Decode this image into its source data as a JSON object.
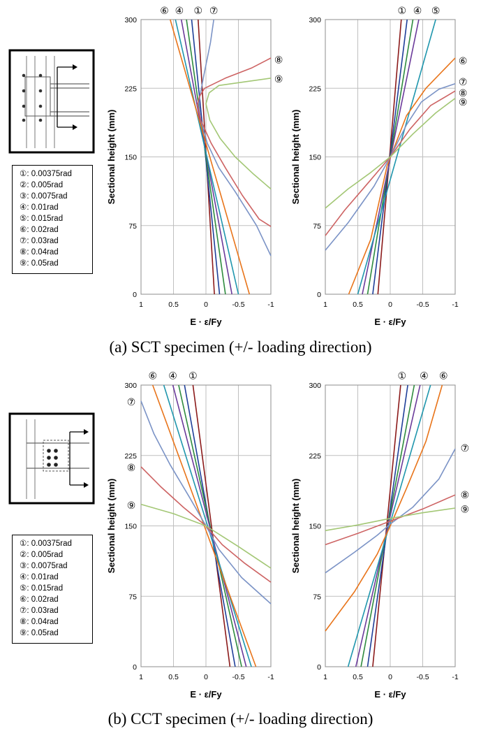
{
  "colors": {
    "r1": "#8b1a1a",
    "r2": "#1f3f99",
    "r3": "#2e8b3e",
    "r4": "#6a3a9a",
    "r5": "#1f96ad",
    "r6": "#e8741a",
    "r7": "#7b93c6",
    "r8": "#cd6363",
    "r9": "#a3c775"
  },
  "legend_items": [
    {
      "sym": "①",
      "text": ": 0.00375rad"
    },
    {
      "sym": "②",
      "text": ": 0.005rad"
    },
    {
      "sym": "③",
      "text": ": 0.0075rad"
    },
    {
      "sym": "④",
      "text": ": 0.01rad"
    },
    {
      "sym": "⑤",
      "text": ": 0.015rad"
    },
    {
      "sym": "⑥",
      "text": ": 0.02rad"
    },
    {
      "sym": "⑦",
      "text": ": 0.03rad"
    },
    {
      "sym": "⑧",
      "text": ": 0.04rad"
    },
    {
      "sym": "⑨",
      "text": ": 0.05rad"
    }
  ],
  "captions": {
    "a": "(a) SCT specimen (+/- loading direction)",
    "b": "(b) CCT specimen (+/- loading direction)"
  },
  "chart_data": [
    {
      "id": "a-left",
      "type": "line",
      "ylabel": "Sectional height (mm)",
      "xlabel": "E · ε/Fy",
      "xlim": [
        1,
        -1
      ],
      "ylim": [
        0,
        300
      ],
      "xticks": [
        1,
        0.5,
        0,
        -0.5,
        -1
      ],
      "yticks": [
        0,
        75,
        150,
        225,
        300
      ],
      "xtick_labels": [
        "1",
        "0.5",
        "0",
        "-0.5",
        "-1"
      ],
      "annotations": [
        {
          "sym": "⑥",
          "x": 0.64,
          "y": 310
        },
        {
          "sym": "④",
          "x": 0.41,
          "y": 310
        },
        {
          "sym": "①",
          "x": 0.12,
          "y": 310
        },
        {
          "sym": "⑦",
          "x": -0.12,
          "y": 310
        },
        {
          "sym": "⑧",
          "x": -1.12,
          "y": 256
        },
        {
          "sym": "⑨",
          "x": -1.12,
          "y": 235
        }
      ],
      "series": [
        {
          "key": "r1",
          "points": [
            [
              -0.13,
              0
            ],
            [
              0.12,
              300
            ]
          ]
        },
        {
          "key": "r2",
          "points": [
            [
              -0.21,
              0
            ],
            [
              0.22,
              300
            ]
          ]
        },
        {
          "key": "r3",
          "points": [
            [
              -0.3,
              0
            ],
            [
              0.3,
              300
            ]
          ]
        },
        {
          "key": "r4",
          "points": [
            [
              -0.4,
              0
            ],
            [
              0.38,
              300
            ]
          ]
        },
        {
          "key": "r5",
          "points": [
            [
              -0.5,
              0
            ],
            [
              0.47,
              300
            ]
          ]
        },
        {
          "key": "r6",
          "points": [
            [
              -0.67,
              0
            ],
            [
              0.55,
              300
            ]
          ]
        },
        {
          "key": "r7",
          "points": [
            [
              -1.0,
              42
            ],
            [
              -0.78,
              75
            ],
            [
              -0.45,
              112
            ],
            [
              -0.2,
              138
            ],
            [
              -0.02,
              165
            ],
            [
              0.08,
              190
            ],
            [
              0.11,
              210
            ],
            [
              0.03,
              240
            ],
            [
              -0.07,
              275
            ],
            [
              -0.12,
              300
            ]
          ]
        },
        {
          "key": "r8",
          "points": [
            [
              -1.0,
              74
            ],
            [
              -0.82,
              82
            ],
            [
              -0.56,
              108
            ],
            [
              -0.3,
              138
            ],
            [
              -0.08,
              165
            ],
            [
              0.08,
              190
            ],
            [
              0.13,
              207
            ],
            [
              0.1,
              216
            ],
            [
              0.02,
              225
            ],
            [
              -0.3,
              236
            ],
            [
              -0.7,
              247
            ],
            [
              -1.0,
              258
            ]
          ]
        },
        {
          "key": "r9",
          "points": [
            [
              -1.0,
              115
            ],
            [
              -0.72,
              132
            ],
            [
              -0.45,
              150
            ],
            [
              -0.22,
              170
            ],
            [
              -0.06,
              190
            ],
            [
              0.0,
              208
            ],
            [
              -0.05,
              220
            ],
            [
              -0.2,
              228
            ],
            [
              -0.6,
              232
            ],
            [
              -1.0,
              236
            ]
          ]
        }
      ]
    },
    {
      "id": "a-right",
      "type": "line",
      "ylabel": "Sectional height (mm)",
      "xlabel": "E · ε/Fy",
      "xlim": [
        1,
        -1
      ],
      "ylim": [
        0,
        300
      ],
      "xticks": [
        1,
        0.5,
        0,
        -0.5,
        -1
      ],
      "yticks": [
        0,
        75,
        150,
        225,
        300
      ],
      "xtick_labels": [
        "1",
        "0.5",
        "0",
        "-0.5",
        "-1"
      ],
      "annotations": [
        {
          "sym": "①",
          "x": -0.18,
          "y": 310
        },
        {
          "sym": "④",
          "x": -0.42,
          "y": 310
        },
        {
          "sym": "⑤",
          "x": -0.7,
          "y": 310
        },
        {
          "sym": "⑥",
          "x": -1.12,
          "y": 255
        },
        {
          "sym": "⑦",
          "x": -1.12,
          "y": 232
        },
        {
          "sym": "⑧",
          "x": -1.12,
          "y": 220
        },
        {
          "sym": "⑨",
          "x": -1.12,
          "y": 210
        }
      ],
      "series": [
        {
          "key": "r1",
          "points": [
            [
              0.19,
              0
            ],
            [
              -0.17,
              300
            ]
          ]
        },
        {
          "key": "r2",
          "points": [
            [
              0.27,
              0
            ],
            [
              -0.26,
              300
            ]
          ]
        },
        {
          "key": "r3",
          "points": [
            [
              0.35,
              0
            ],
            [
              -0.35,
              300
            ]
          ]
        },
        {
          "key": "r4",
          "points": [
            [
              0.43,
              0
            ],
            [
              -0.44,
              300
            ]
          ]
        },
        {
          "key": "r5",
          "points": [
            [
              0.5,
              0
            ],
            [
              -0.7,
              300
            ]
          ]
        },
        {
          "key": "r6",
          "points": [
            [
              0.64,
              0
            ],
            [
              0.3,
              60
            ],
            [
              0.05,
              140
            ],
            [
              -0.25,
              195
            ],
            [
              -0.55,
              225
            ],
            [
              -1.0,
              258
            ]
          ]
        },
        {
          "key": "r7",
          "points": [
            [
              1.0,
              48
            ],
            [
              0.65,
              78
            ],
            [
              0.25,
              118
            ],
            [
              0.0,
              150
            ],
            [
              -0.25,
              185
            ],
            [
              -0.48,
              210
            ],
            [
              -0.75,
              224
            ],
            [
              -1.0,
              230
            ]
          ]
        },
        {
          "key": "r8",
          "points": [
            [
              1.0,
              64
            ],
            [
              0.7,
              92
            ],
            [
              0.3,
              125
            ],
            [
              0.0,
              150
            ],
            [
              -0.3,
              180
            ],
            [
              -0.62,
              206
            ],
            [
              -1.0,
              222
            ]
          ]
        },
        {
          "key": "r9",
          "points": [
            [
              1.0,
              94
            ],
            [
              0.65,
              115
            ],
            [
              0.3,
              133
            ],
            [
              0.0,
              150
            ],
            [
              -0.35,
              175
            ],
            [
              -0.7,
              198
            ],
            [
              -1.0,
              214
            ]
          ]
        }
      ]
    },
    {
      "id": "b-left",
      "type": "line",
      "ylabel": "Sectional height (mm)",
      "xlabel": "E · ε/Fy",
      "xlim": [
        1,
        -1
      ],
      "ylim": [
        0,
        300
      ],
      "xticks": [
        1,
        0.5,
        0,
        -0.5,
        -1
      ],
      "yticks": [
        0,
        75,
        150,
        225,
        300
      ],
      "xtick_labels": [
        "1",
        "0.5",
        "0",
        "-0.5",
        "-1"
      ],
      "annotations": [
        {
          "sym": "⑥",
          "x": 0.82,
          "y": 310
        },
        {
          "sym": "④",
          "x": 0.51,
          "y": 310
        },
        {
          "sym": "①",
          "x": 0.2,
          "y": 310
        },
        {
          "sym": "⑦",
          "x": 1.15,
          "y": 282
        },
        {
          "sym": "⑧",
          "x": 1.15,
          "y": 212
        },
        {
          "sym": "⑨",
          "x": 1.15,
          "y": 172
        }
      ],
      "series": [
        {
          "key": "r1",
          "points": [
            [
              -0.37,
              0
            ],
            [
              0.2,
              300
            ]
          ]
        },
        {
          "key": "r2",
          "points": [
            [
              -0.45,
              0
            ],
            [
              0.33,
              300
            ]
          ]
        },
        {
          "key": "r3",
          "points": [
            [
              -0.55,
              0
            ],
            [
              0.42,
              300
            ]
          ]
        },
        {
          "key": "r4",
          "points": [
            [
              -0.62,
              0
            ],
            [
              0.51,
              300
            ]
          ]
        },
        {
          "key": "r5",
          "points": [
            [
              -0.7,
              0
            ],
            [
              0.65,
              300
            ]
          ]
        },
        {
          "key": "r6",
          "points": [
            [
              -0.77,
              0
            ],
            [
              0.82,
              300
            ]
          ]
        },
        {
          "key": "r7",
          "points": [
            [
              -1.0,
              67
            ],
            [
              -0.55,
              95
            ],
            [
              -0.2,
              125
            ],
            [
              0.0,
              150
            ],
            [
              0.25,
              180
            ],
            [
              0.55,
              215
            ],
            [
              0.8,
              248
            ],
            [
              1.0,
              283
            ]
          ]
        },
        {
          "key": "r8",
          "points": [
            [
              -1.0,
              90
            ],
            [
              -0.6,
              110
            ],
            [
              -0.25,
              130
            ],
            [
              0.0,
              150
            ],
            [
              0.35,
              170
            ],
            [
              0.7,
              192
            ],
            [
              1.0,
              213
            ]
          ]
        },
        {
          "key": "r9",
          "points": [
            [
              -1.0,
              105
            ],
            [
              -0.5,
              128
            ],
            [
              0.0,
              150
            ],
            [
              0.5,
              163
            ],
            [
              1.0,
              173
            ]
          ]
        }
      ]
    },
    {
      "id": "b-right",
      "type": "line",
      "ylabel": "Sectional height (mm)",
      "xlabel": "E · ε/Fy",
      "xlim": [
        1,
        -1
      ],
      "ylim": [
        0,
        300
      ],
      "xticks": [
        1,
        0.5,
        0,
        -0.5,
        -1
      ],
      "yticks": [
        0,
        75,
        150,
        225,
        300
      ],
      "xtick_labels": [
        "1",
        "0.5",
        "0",
        "-0.5",
        "-1"
      ],
      "annotations": [
        {
          "sym": "①",
          "x": -0.18,
          "y": 310
        },
        {
          "sym": "④",
          "x": -0.52,
          "y": 310
        },
        {
          "sym": "⑥",
          "x": -0.82,
          "y": 310
        },
        {
          "sym": "⑦",
          "x": -1.15,
          "y": 233
        },
        {
          "sym": "⑧",
          "x": -1.15,
          "y": 183
        },
        {
          "sym": "⑨",
          "x": -1.15,
          "y": 168
        }
      ],
      "series": [
        {
          "key": "r1",
          "points": [
            [
              0.27,
              0
            ],
            [
              -0.16,
              300
            ]
          ]
        },
        {
          "key": "r2",
          "points": [
            [
              0.35,
              0
            ],
            [
              -0.27,
              300
            ]
          ]
        },
        {
          "key": "r3",
          "points": [
            [
              0.45,
              0
            ],
            [
              -0.37,
              300
            ]
          ]
        },
        {
          "key": "r4",
          "points": [
            [
              0.53,
              0
            ],
            [
              -0.46,
              300
            ]
          ]
        },
        {
          "key": "r5",
          "points": [
            [
              0.65,
              0
            ],
            [
              -0.62,
              300
            ]
          ]
        },
        {
          "key": "r6",
          "points": [
            [
              1.0,
              38
            ],
            [
              0.55,
              80
            ],
            [
              0.2,
              120
            ],
            [
              0.0,
              150
            ],
            [
              -0.25,
              190
            ],
            [
              -0.55,
              240
            ],
            [
              -0.8,
              300
            ]
          ]
        },
        {
          "key": "r7",
          "points": [
            [
              1.0,
              100
            ],
            [
              0.55,
              122
            ],
            [
              0.2,
              140
            ],
            [
              0.0,
              152
            ],
            [
              -0.35,
              170
            ],
            [
              -0.75,
              200
            ],
            [
              -1.0,
              232
            ]
          ]
        },
        {
          "key": "r8",
          "points": [
            [
              1.0,
              130
            ],
            [
              0.5,
              142
            ],
            [
              0.0,
              155
            ],
            [
              -0.5,
              168
            ],
            [
              -1.0,
              183
            ]
          ]
        },
        {
          "key": "r9",
          "points": [
            [
              1.0,
              145
            ],
            [
              0.5,
              151
            ],
            [
              0.0,
              158
            ],
            [
              -0.5,
              164
            ],
            [
              -1.0,
              169
            ]
          ]
        }
      ]
    }
  ]
}
